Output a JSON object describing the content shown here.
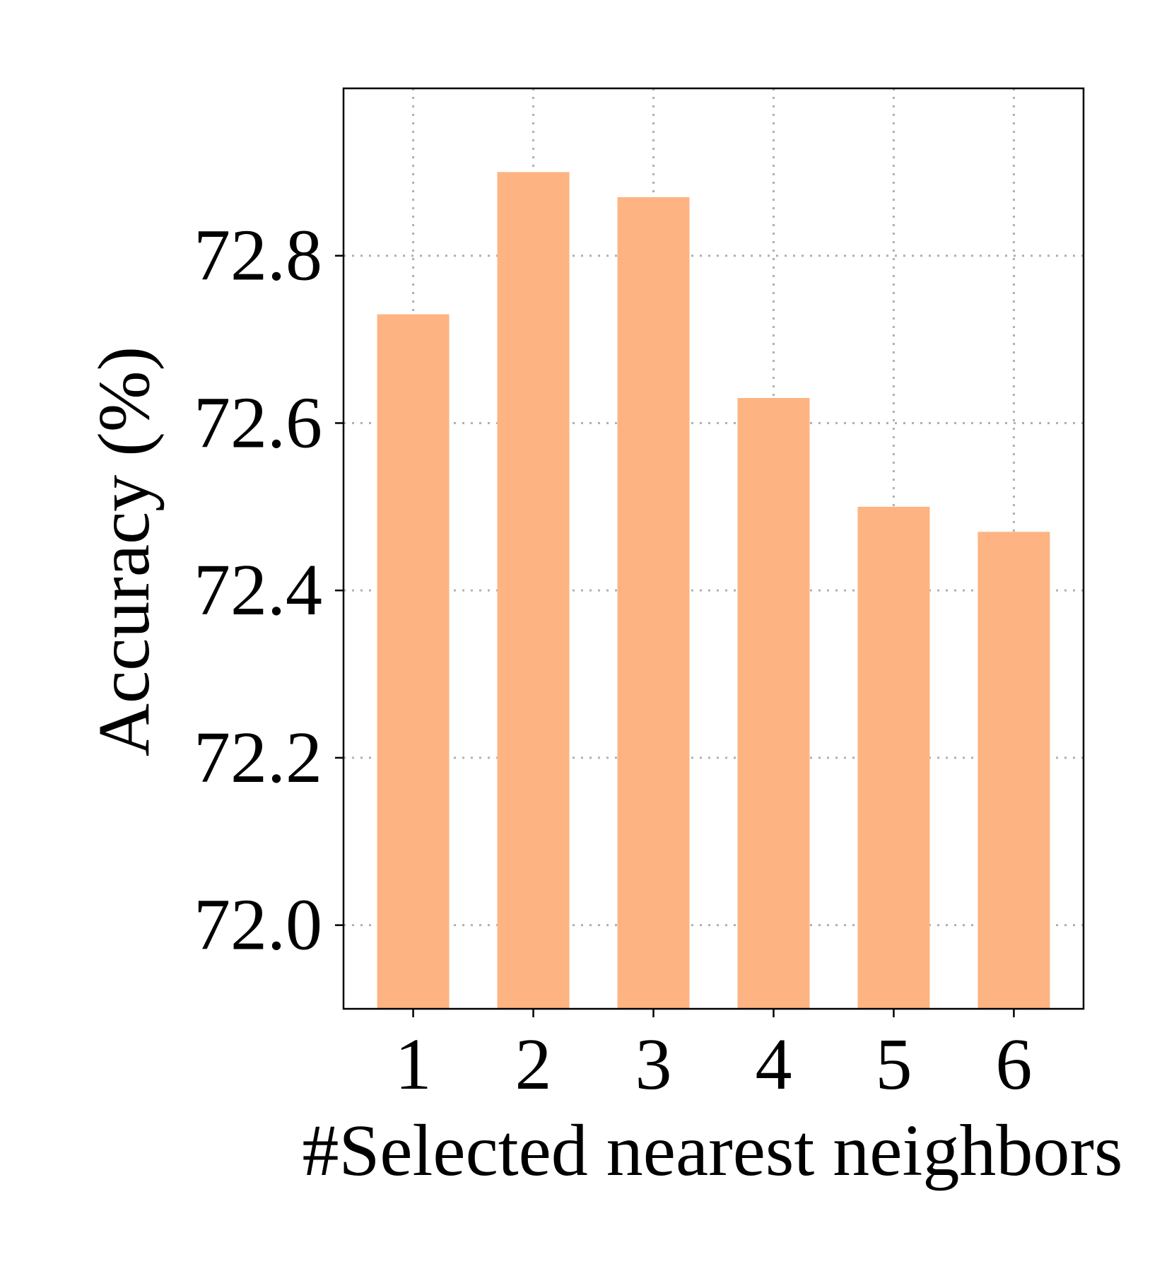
{
  "chart_data": {
    "type": "bar",
    "categories": [
      "1",
      "2",
      "3",
      "4",
      "5",
      "6"
    ],
    "values": [
      72.73,
      72.9,
      72.87,
      72.63,
      72.5,
      72.47
    ],
    "title": "",
    "xlabel": "#Selected nearest neighbors",
    "ylabel": "Accuracy (%)",
    "ylim": [
      71.9,
      73.0
    ],
    "yticks": [
      72.0,
      72.2,
      72.4,
      72.6,
      72.8
    ],
    "ytick_labels": [
      "72.0",
      "72.2",
      "72.4",
      "72.6",
      "72.8"
    ],
    "grid": true,
    "legend": "none",
    "bar_color": "#fdb482"
  }
}
